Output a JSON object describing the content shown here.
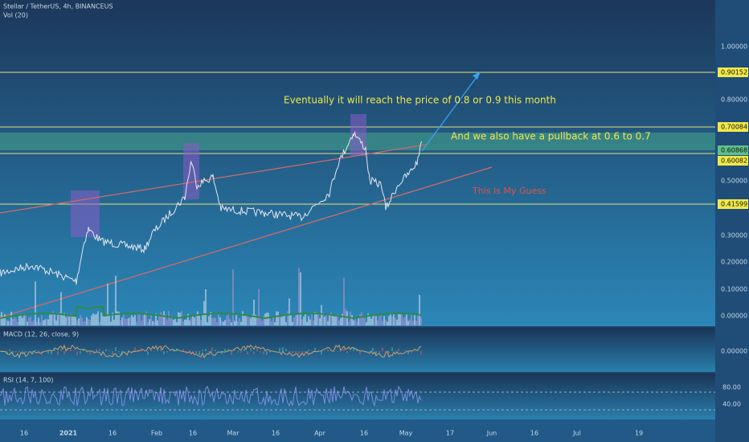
{
  "header": {
    "symbol": "Stellar / TetherUS, 4h, BINANCEUS",
    "volume": "Vol (20)"
  },
  "price_axis": [
    "1.00000",
    "0.90152",
    "0.80000",
    "0.70084",
    "0.60868",
    "0.60082",
    "0.50000",
    "0.41599",
    "0.30000",
    "0.20000",
    "0.10000",
    "0.00000"
  ],
  "annotations": [
    "Eventually it will reach the price of 0.8 or 0.9 this month",
    "And we also have a pullback at 0.6 to 0.7",
    "This Is My Guess"
  ],
  "macd": {
    "label": "MACD (12, 26, close, 9)",
    "axis": [
      "0.00000"
    ]
  },
  "rsi": {
    "label": "RSI (14, 7, 100)",
    "axis": [
      "80.00",
      "40.00"
    ]
  },
  "time_axis": [
    "16",
    "2021",
    "16",
    "Feb",
    "16",
    "Mar",
    "16",
    "Apr",
    "16",
    "May",
    "17",
    "Jun",
    "16",
    "Jul",
    "19"
  ]
}
